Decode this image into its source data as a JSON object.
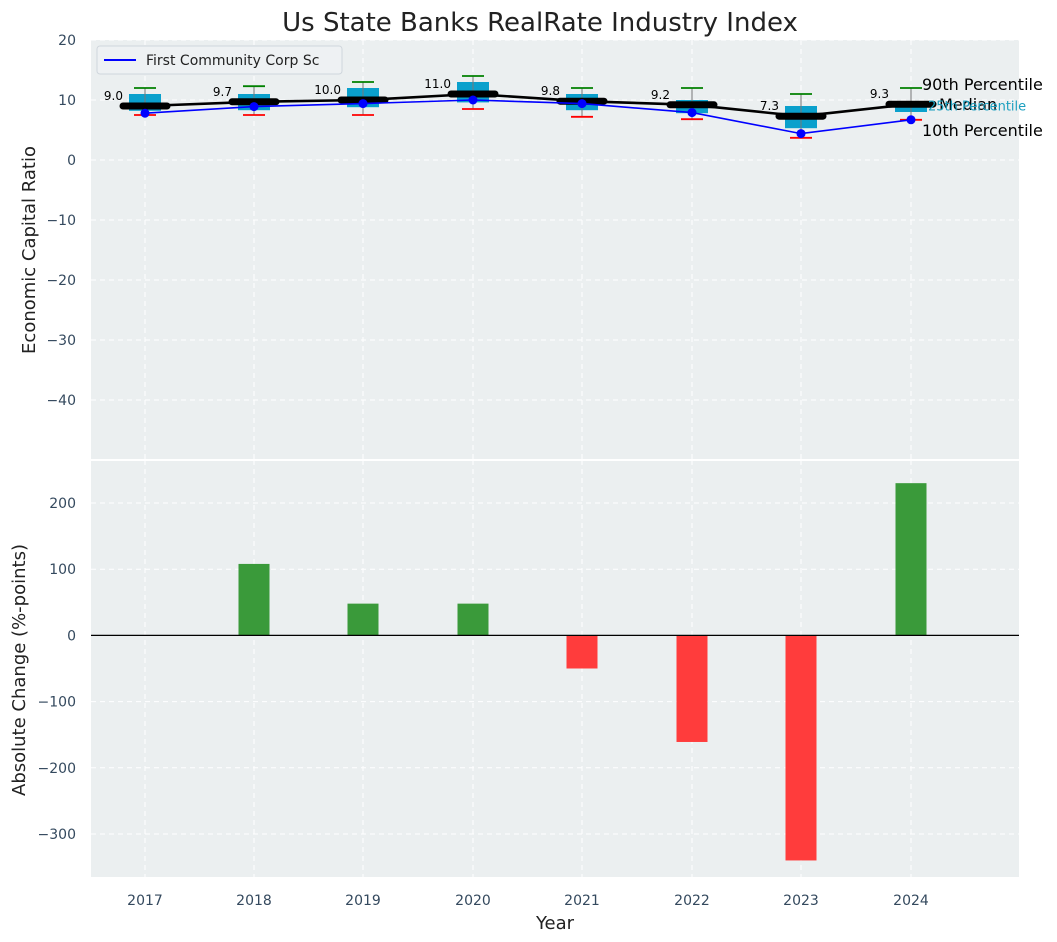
{
  "chart_data": [
    {
      "type": "box",
      "title": "Us State Banks RealRate Industry Index",
      "ylabel": "Economic Capital Ratio",
      "ylim": [
        -50,
        20
      ],
      "yticks": [
        20,
        10,
        0,
        -10,
        -20,
        -30,
        -40
      ],
      "categories": [
        "2017",
        "2018",
        "2019",
        "2020",
        "2021",
        "2022",
        "2023",
        "2024"
      ],
      "median": [
        9.0,
        9.7,
        10.0,
        11.0,
        9.8,
        9.2,
        7.3,
        9.3
      ],
      "median_labels": [
        "9.0",
        "9.7",
        "10.0",
        "11.0",
        "9.8",
        "9.2",
        "7.3",
        "9.3"
      ],
      "p25": [
        8.2,
        8.3,
        8.8,
        9.6,
        8.3,
        7.8,
        5.3,
        8.0
      ],
      "p75": [
        11.0,
        11.0,
        12.0,
        13.0,
        11.0,
        10.0,
        9.0,
        9.8
      ],
      "p10": [
        7.5,
        7.5,
        7.5,
        8.5,
        7.2,
        6.8,
        3.7,
        6.7
      ],
      "p90": [
        12.0,
        12.3,
        13.0,
        14.0,
        12.0,
        12.0,
        11.0,
        12.0
      ],
      "series": [
        {
          "name": "First Community Corp Sc",
          "values": [
            7.8,
            8.9,
            9.4,
            10.0,
            9.4,
            7.9,
            4.4,
            6.7
          ]
        }
      ],
      "annotations": {
        "p90": "90th Percentile",
        "median": "Median",
        "p25": "25th Percentile",
        "p10": "10th Percentile"
      },
      "colors": {
        "box": "#0aa0cc",
        "median": "#000000",
        "company": "#0000ff",
        "p90_whisker": "#008000",
        "p10_whisker": "#ff0000",
        "p25_label": "#1a9fbf",
        "background": "#ebeff0"
      }
    },
    {
      "type": "bar",
      "ylabel": "Absolute Change (%-points)",
      "xlabel": "Year",
      "ylim": [
        -365,
        265
      ],
      "yticks": [
        200,
        100,
        0,
        -100,
        -200,
        -300
      ],
      "categories": [
        "2017",
        "2018",
        "2019",
        "2020",
        "2021",
        "2022",
        "2023",
        "2024"
      ],
      "values": [
        0,
        108,
        48,
        48,
        -50,
        -161,
        -340,
        230
      ],
      "colors": {
        "positive": "#3a9a3a",
        "negative": "#ff3c3c"
      }
    }
  ]
}
